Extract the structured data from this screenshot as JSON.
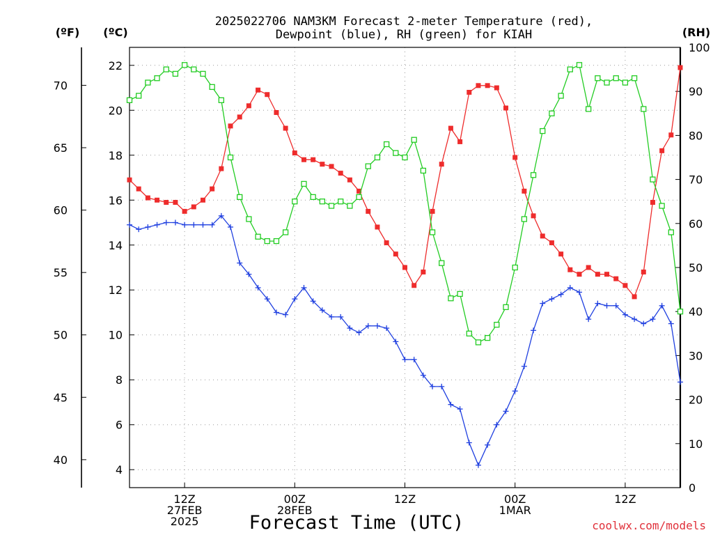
{
  "title_line1": "2025022706 NAM3KM Forecast 2-meter Temperature (red),",
  "title_line2": "Dewpoint (blue), RH (green) for KIAH",
  "units": {
    "fahrenheit": "(ºF)",
    "celsius": "(ºC)",
    "rh": "(RH)"
  },
  "xlabel": "Forecast Time (UTC)",
  "credit": "coolwx.com/models",
  "x_ticks": [
    {
      "x": 6,
      "lines": [
        "12Z",
        "27FEB",
        "2025"
      ]
    },
    {
      "x": 18,
      "lines": [
        "00Z",
        "28FEB"
      ]
    },
    {
      "x": 30,
      "lines": [
        "12Z"
      ]
    },
    {
      "x": 42,
      "lines": [
        "00Z",
        "1MAR"
      ]
    },
    {
      "x": 54,
      "lines": [
        "12Z"
      ]
    }
  ],
  "chart_data": {
    "type": "line",
    "x_units": "forecast hour from 2025022706 (hourly)",
    "xlim": [
      0,
      60
    ],
    "ylim_celsius": [
      3.2,
      22.8
    ],
    "ylim_rh": [
      0,
      100
    ],
    "fahrenheit_ticks": [
      40,
      45,
      50,
      55,
      60,
      65,
      70
    ],
    "celsius_ticks": [
      4,
      6,
      8,
      10,
      12,
      14,
      16,
      18,
      20,
      22
    ],
    "rh_ticks": [
      0,
      10,
      20,
      30,
      40,
      50,
      60,
      70,
      80,
      90,
      100
    ],
    "grid": true,
    "colors": {
      "temperature": "#ee2c2c",
      "dewpoint": "#2040e0",
      "rh": "#22cc22",
      "grid": "#9a9a9a"
    },
    "series": [
      {
        "axis": "celsius",
        "marker": "filled-square",
        "color": "#ee2c2c",
        "values": [
          16.9,
          16.5,
          16.1,
          16.0,
          15.9,
          15.9,
          15.5,
          15.7,
          16.0,
          16.5,
          17.4,
          19.3,
          19.7,
          20.2,
          20.9,
          20.7,
          19.9,
          19.2,
          18.1,
          17.8,
          17.8,
          17.6,
          17.5,
          17.2,
          16.9,
          16.4,
          15.5,
          14.8,
          14.1,
          13.6,
          13.0,
          12.2,
          12.8,
          15.5,
          17.6,
          19.2,
          18.6,
          20.8,
          21.1,
          21.1,
          21.0,
          20.1,
          17.9,
          16.4,
          15.3,
          14.4,
          14.1,
          13.6,
          12.9,
          12.7,
          13.0,
          12.7,
          12.7,
          12.5,
          12.2,
          11.7,
          12.8,
          15.9,
          18.2,
          18.9,
          21.9
        ]
      },
      {
        "axis": "celsius",
        "marker": "plus",
        "color": "#2040e0",
        "values": [
          14.9,
          14.7,
          14.8,
          14.9,
          15.0,
          15.0,
          14.9,
          14.9,
          14.9,
          14.9,
          15.3,
          14.8,
          13.2,
          12.7,
          12.1,
          11.6,
          11.0,
          10.9,
          11.6,
          12.1,
          11.5,
          11.1,
          10.8,
          10.8,
          10.3,
          10.1,
          10.4,
          10.4,
          10.3,
          9.7,
          8.9,
          8.9,
          8.2,
          7.7,
          7.7,
          6.9,
          6.7,
          5.2,
          4.2,
          5.1,
          6.0,
          6.6,
          7.5,
          8.6,
          10.2,
          11.4,
          11.6,
          11.8,
          12.1,
          11.9,
          10.7,
          11.4,
          11.3,
          11.3,
          10.9,
          10.7,
          10.5,
          10.7,
          11.3,
          10.5,
          7.9
        ]
      },
      {
        "axis": "rh",
        "marker": "open-square",
        "color": "#22cc22",
        "values": [
          88,
          89,
          92,
          93,
          95,
          94,
          96,
          95,
          94,
          91,
          88,
          75,
          66,
          61,
          57,
          56,
          56,
          58,
          65,
          69,
          66,
          65,
          64,
          65,
          64,
          66,
          73,
          75,
          78,
          76,
          75,
          79,
          72,
          58,
          51,
          43,
          44,
          35,
          33,
          34,
          37,
          41,
          50,
          61,
          71,
          81,
          85,
          89,
          95,
          96,
          86,
          93,
          92,
          93,
          92,
          93,
          86,
          70,
          64,
          58,
          40
        ]
      }
    ]
  }
}
